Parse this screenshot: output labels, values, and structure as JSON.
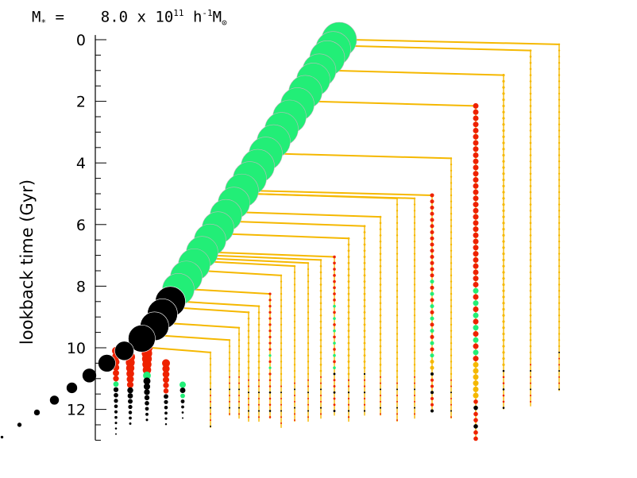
{
  "header": {
    "mass_symbol": "M",
    "mass_sub": "*",
    "equals": "=",
    "value": "8.0 x 10",
    "exp": "11",
    "units_h": "h",
    "units_hexp": "-1",
    "units_m": "M",
    "units_msub": "⊙"
  },
  "chart_data": {
    "type": "scatter",
    "title": "",
    "ylabel": "lookback time (Gyr)",
    "xlabel": "",
    "ylim": [
      0,
      13
    ],
    "y_inverted": true,
    "yticks": [
      0,
      2,
      4,
      6,
      8,
      10,
      12
    ],
    "ytick_labels": [
      "0",
      "2",
      "4",
      "6",
      "8",
      "10",
      "12"
    ],
    "colors": {
      "star_forming": "#22ee77",
      "red_phase": "#ee2200",
      "quiescent_black": "#000000",
      "branch_line": "#f5b800"
    },
    "main_branch": [
      {
        "t": 0.0,
        "size": 22,
        "color": "star_forming"
      },
      {
        "t": 0.3,
        "size": 22,
        "color": "star_forming"
      },
      {
        "t": 0.6,
        "size": 22,
        "color": "star_forming"
      },
      {
        "t": 1.0,
        "size": 21,
        "color": "star_forming"
      },
      {
        "t": 1.3,
        "size": 21,
        "color": "star_forming"
      },
      {
        "t": 1.7,
        "size": 21,
        "color": "star_forming"
      },
      {
        "t": 2.1,
        "size": 21,
        "color": "star_forming"
      },
      {
        "t": 2.5,
        "size": 21,
        "color": "star_forming"
      },
      {
        "t": 2.9,
        "size": 21,
        "color": "star_forming"
      },
      {
        "t": 3.3,
        "size": 21,
        "color": "star_forming"
      },
      {
        "t": 3.7,
        "size": 21,
        "color": "star_forming"
      },
      {
        "t": 4.1,
        "size": 21,
        "color": "star_forming"
      },
      {
        "t": 4.5,
        "size": 21,
        "color": "star_forming"
      },
      {
        "t": 4.9,
        "size": 21,
        "color": "star_forming"
      },
      {
        "t": 5.3,
        "size": 20,
        "color": "star_forming"
      },
      {
        "t": 5.7,
        "size": 20,
        "color": "star_forming"
      },
      {
        "t": 6.1,
        "size": 20,
        "color": "star_forming"
      },
      {
        "t": 6.5,
        "size": 20,
        "color": "star_forming"
      },
      {
        "t": 6.9,
        "size": 20,
        "color": "star_forming"
      },
      {
        "t": 7.3,
        "size": 20,
        "color": "star_forming"
      },
      {
        "t": 7.7,
        "size": 20,
        "color": "star_forming"
      },
      {
        "t": 8.1,
        "size": 20,
        "color": "star_forming"
      },
      {
        "t": 8.5,
        "size": 19,
        "color": "quiescent_black"
      },
      {
        "t": 8.9,
        "size": 19,
        "color": "quiescent_black"
      },
      {
        "t": 9.3,
        "size": 18,
        "color": "quiescent_black"
      },
      {
        "t": 9.7,
        "size": 17,
        "color": "quiescent_black"
      },
      {
        "t": 10.1,
        "size": 12,
        "color": "quiescent_black"
      },
      {
        "t": 10.5,
        "size": 11,
        "color": "quiescent_black"
      },
      {
        "t": 10.9,
        "size": 9,
        "color": "quiescent_black"
      },
      {
        "t": 11.3,
        "size": 7,
        "color": "quiescent_black"
      },
      {
        "t": 11.7,
        "size": 6,
        "color": "quiescent_black"
      },
      {
        "t": 12.1,
        "size": 4,
        "color": "quiescent_black"
      },
      {
        "t": 12.5,
        "size": 3,
        "color": "quiescent_black"
      },
      {
        "t": 12.9,
        "size": 2,
        "color": "quiescent_black"
      }
    ],
    "progenitor_branches": [
      {
        "merge_t": 0.0,
        "start_t": 11.4,
        "size": 1.2
      },
      {
        "merge_t": 0.2,
        "start_t": 11.9,
        "size": 1.3
      },
      {
        "merge_t": 1.0,
        "start_t": 12.0,
        "size": 1.6
      },
      {
        "merge_t": 2.0,
        "start_t": 13.0,
        "size": 3.5,
        "red_until": 8.0
      },
      {
        "merge_t": 3.7,
        "start_t": 12.3,
        "size": 1.2
      },
      {
        "merge_t": 4.9,
        "start_t": 12.1,
        "size": 2.5,
        "red_until": 7.8
      },
      {
        "merge_t": 5.0,
        "start_t": 12.3,
        "size": 1.2
      },
      {
        "merge_t": 5.0,
        "start_t": 12.4,
        "size": 1.2
      },
      {
        "merge_t": 5.6,
        "start_t": 12.2,
        "size": 1.3
      },
      {
        "merge_t": 5.9,
        "start_t": 12.2,
        "size": 1.4
      },
      {
        "merge_t": 6.3,
        "start_t": 12.4,
        "size": 1.4
      },
      {
        "merge_t": 6.9,
        "start_t": 12.2,
        "size": 1.8,
        "red_until": 8.3
      },
      {
        "merge_t": 7.0,
        "start_t": 12.3,
        "size": 1.3
      },
      {
        "merge_t": 7.1,
        "start_t": 12.4,
        "size": 1.2
      },
      {
        "merge_t": 7.2,
        "start_t": 12.4,
        "size": 1.2
      },
      {
        "merge_t": 7.5,
        "start_t": 12.6,
        "size": 1.2
      },
      {
        "merge_t": 8.1,
        "start_t": 12.3,
        "size": 1.6,
        "red_until": 10.0
      },
      {
        "merge_t": 8.5,
        "start_t": 12.4,
        "size": 1.3
      },
      {
        "merge_t": 8.7,
        "start_t": 12.4,
        "size": 1.3
      },
      {
        "merge_t": 9.2,
        "start_t": 12.3,
        "size": 1.2
      },
      {
        "merge_t": 9.6,
        "start_t": 12.2,
        "size": 1.2
      },
      {
        "merge_t": 10.0,
        "start_t": 12.6,
        "size": 1.2
      }
    ],
    "early_clumps": [
      {
        "x_off": 4,
        "top_t": 10.1,
        "bottom_t": 12.8,
        "size": 5,
        "red_until": 11.0
      },
      {
        "x_off": 16,
        "top_t": 10.3,
        "bottom_t": 12.6,
        "size": 6,
        "red_until": 11.2
      },
      {
        "x_off": 30,
        "top_t": 10.0,
        "bottom_t": 12.4,
        "size": 7,
        "red_until": 10.8
      },
      {
        "x_off": 46,
        "top_t": 10.5,
        "bottom_t": 12.6,
        "size": 5,
        "red_until": 11.4
      },
      {
        "x_off": 60,
        "top_t": 11.2,
        "bottom_t": 12.3,
        "size": 4
      }
    ]
  }
}
